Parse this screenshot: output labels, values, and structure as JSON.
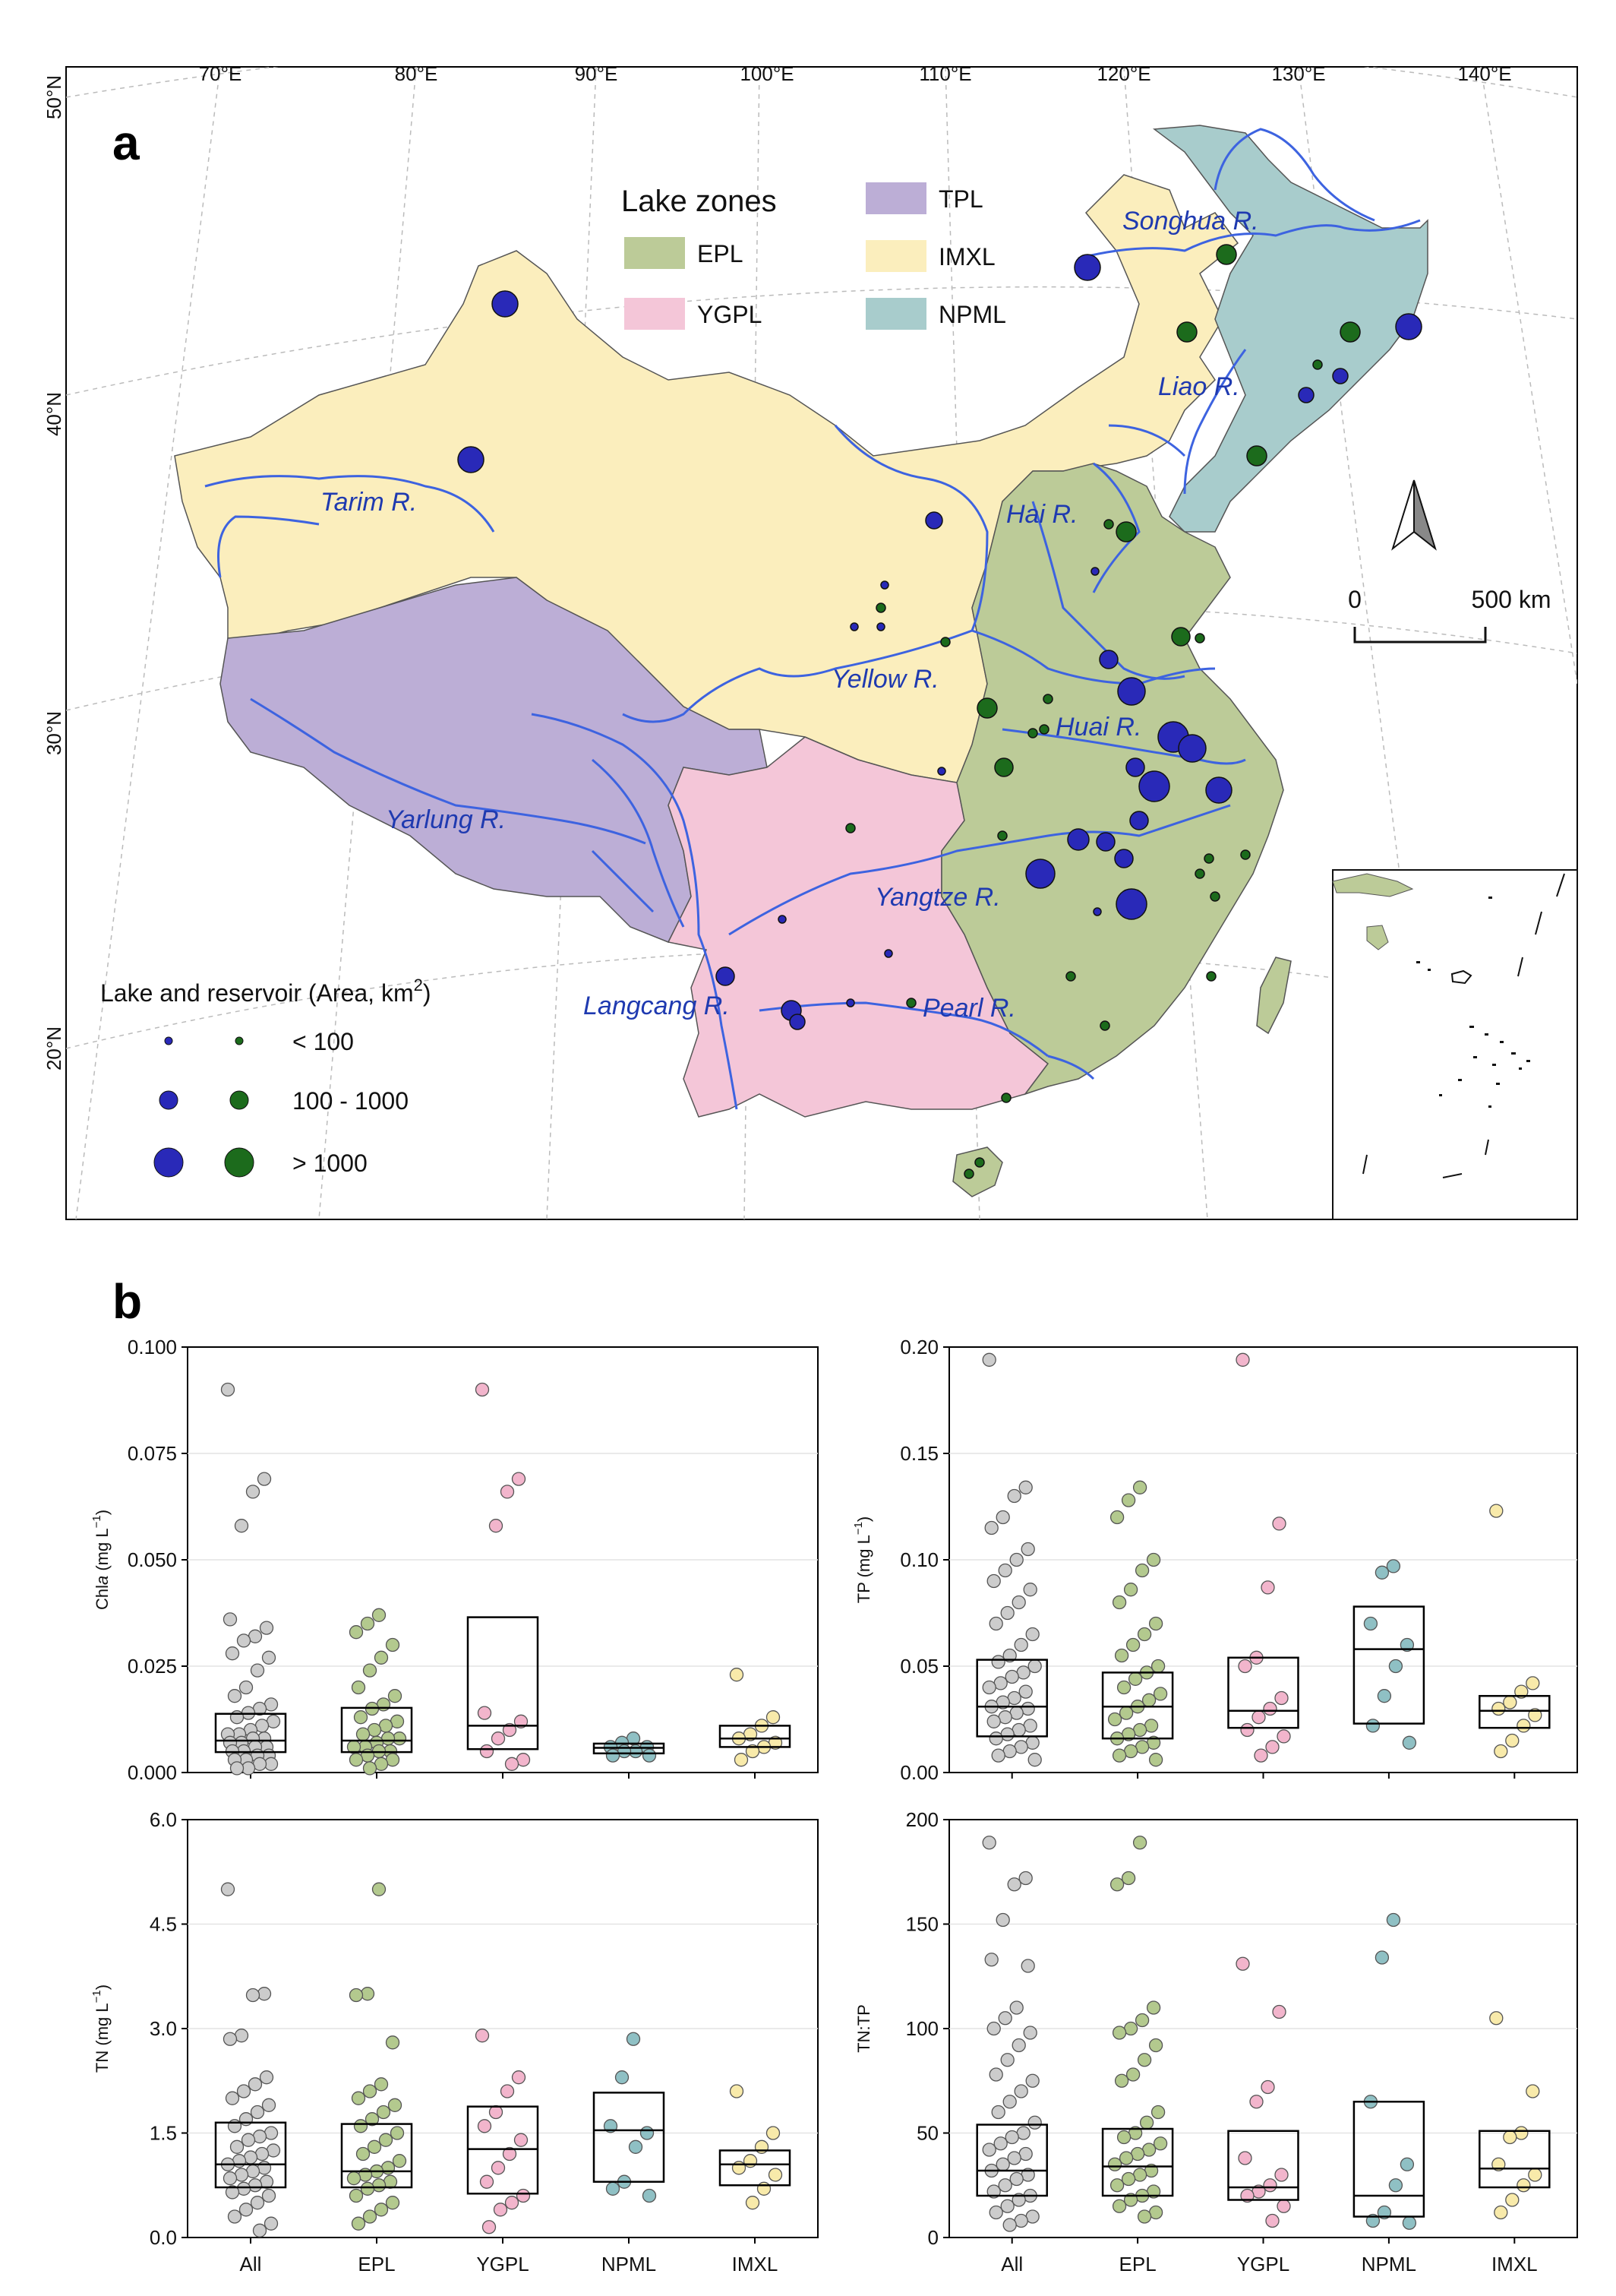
{
  "panel_a": {
    "letter": "a",
    "lon_labels": [
      "70°E",
      "80°E",
      "90°E",
      "100°E",
      "110°E",
      "120°E",
      "130°E",
      "140°E"
    ],
    "lat_labels": [
      "50°N",
      "40°N",
      "30°N",
      "20°N"
    ],
    "legend_zones": {
      "title": "Lake zones",
      "items": [
        {
          "label": "EPL",
          "color": "#bccb98"
        },
        {
          "label": "TPL",
          "color": "#bcaed6"
        },
        {
          "label": "YGPL",
          "color": "#f4c6d8"
        },
        {
          "label": "IMXL",
          "color": "#fbeebd"
        },
        {
          "label": "NPML",
          "color": "#a8cccc"
        }
      ]
    },
    "legend_size": {
      "title": "Lake and reservoir (Area, km",
      "title_sup": "2",
      "title_end": ")",
      "classes": [
        "< 100",
        "100 - 1000",
        "> 1000"
      ]
    },
    "scale_bar": {
      "start": "0",
      "end": "500 km"
    },
    "rivers": [
      "Songhua R.",
      "Liao R.",
      "Hai R.",
      "Tarim R.",
      "Yellow R.",
      "Huai R.",
      "Yarlung R.",
      "Yangtze R.",
      "Langcang R.",
      "Pearl R."
    ],
    "colors": {
      "lake_blue": "#2929b8",
      "lake_green": "#1c6b1c",
      "river": "#3d63e0"
    }
  },
  "panel_b": {
    "letter": "b",
    "categories": [
      "All",
      "EPL",
      "YGPL",
      "NPML",
      "IMXL"
    ],
    "category_colors": [
      "#cccccc",
      "#b3c98e",
      "#f2b5cc",
      "#8fc0c4",
      "#f8eaaa"
    ],
    "chart_data": [
      {
        "type": "box",
        "ylabel_main": "Chla",
        "ylabel_unit": " (mg L",
        "ylabel_sup": "−1",
        "ylabel_end": ")",
        "ylim": [
          0,
          0.1
        ],
        "ticks": [
          "0.000",
          "0.025",
          "0.050",
          "0.075",
          "0.100"
        ],
        "boxes": [
          [
            0.0048,
            0.0075,
            0.0138
          ],
          [
            0.0048,
            0.0075,
            0.0152
          ],
          [
            0.0055,
            0.011,
            0.0365
          ],
          [
            0.0045,
            0.0058,
            0.0068
          ],
          [
            0.006,
            0.008,
            0.011
          ]
        ],
        "points": [
          [
            0.09,
            0.069,
            0.066,
            0.058,
            0.036,
            0.034,
            0.032,
            0.031,
            0.028,
            0.027,
            0.024,
            0.02,
            0.018,
            0.016,
            0.015,
            0.014,
            0.013,
            0.012,
            0.011,
            0.01,
            0.009,
            0.009,
            0.008,
            0.008,
            0.007,
            0.007,
            0.006,
            0.006,
            0.005,
            0.005,
            0.004,
            0.004,
            0.003,
            0.003,
            0.002,
            0.002,
            0.001,
            0.001
          ],
          [
            0.037,
            0.035,
            0.033,
            0.03,
            0.027,
            0.024,
            0.02,
            0.018,
            0.016,
            0.015,
            0.013,
            0.012,
            0.011,
            0.01,
            0.009,
            0.008,
            0.008,
            0.007,
            0.006,
            0.006,
            0.005,
            0.005,
            0.004,
            0.003,
            0.003,
            0.002,
            0.001
          ],
          [
            0.09,
            0.069,
            0.066,
            0.058,
            0.014,
            0.012,
            0.01,
            0.008,
            0.005,
            0.003,
            0.002
          ],
          [
            0.008,
            0.007,
            0.006,
            0.006,
            0.005,
            0.005,
            0.004,
            0.004
          ],
          [
            0.023,
            0.013,
            0.011,
            0.009,
            0.008,
            0.007,
            0.006,
            0.005,
            0.003
          ]
        ]
      },
      {
        "type": "box",
        "ylabel_main": "TP",
        "ylabel_unit": " (mg L",
        "ylabel_sup": "−1",
        "ylabel_end": ")",
        "ylim": [
          0,
          0.2
        ],
        "ticks": [
          "0.00",
          "0.05",
          "0.10",
          "0.15",
          "0.20"
        ],
        "boxes": [
          [
            0.017,
            0.031,
            0.053
          ],
          [
            0.016,
            0.031,
            0.047
          ],
          [
            0.021,
            0.029,
            0.054
          ],
          [
            0.023,
            0.058,
            0.078
          ],
          [
            0.021,
            0.029,
            0.036
          ]
        ],
        "points": [
          [
            0.194,
            0.134,
            0.13,
            0.12,
            0.115,
            0.105,
            0.1,
            0.095,
            0.09,
            0.086,
            0.08,
            0.075,
            0.07,
            0.065,
            0.06,
            0.055,
            0.052,
            0.05,
            0.047,
            0.045,
            0.042,
            0.04,
            0.038,
            0.035,
            0.033,
            0.031,
            0.03,
            0.028,
            0.026,
            0.024,
            0.022,
            0.02,
            0.018,
            0.016,
            0.014,
            0.012,
            0.01,
            0.008,
            0.006
          ],
          [
            0.134,
            0.128,
            0.12,
            0.1,
            0.095,
            0.086,
            0.08,
            0.07,
            0.065,
            0.06,
            0.055,
            0.05,
            0.047,
            0.044,
            0.04,
            0.037,
            0.034,
            0.031,
            0.028,
            0.025,
            0.022,
            0.02,
            0.018,
            0.016,
            0.014,
            0.012,
            0.01,
            0.008,
            0.006
          ],
          [
            0.194,
            0.117,
            0.087,
            0.054,
            0.05,
            0.035,
            0.03,
            0.026,
            0.02,
            0.017,
            0.012,
            0.008
          ],
          [
            0.097,
            0.094,
            0.07,
            0.06,
            0.05,
            0.036,
            0.022,
            0.014
          ],
          [
            0.123,
            0.042,
            0.038,
            0.033,
            0.03,
            0.027,
            0.022,
            0.015,
            0.01
          ]
        ]
      },
      {
        "type": "box",
        "ylabel_main": "TN",
        "ylabel_unit": " (mg L",
        "ylabel_sup": "−1",
        "ylabel_end": ")",
        "ylim": [
          0,
          6
        ],
        "ticks": [
          "0.0",
          "1.5",
          "3.0",
          "4.5",
          "6.0"
        ],
        "boxes": [
          [
            0.72,
            1.05,
            1.65
          ],
          [
            0.72,
            0.95,
            1.63
          ],
          [
            0.63,
            1.27,
            1.88
          ],
          [
            0.8,
            1.54,
            2.08
          ],
          [
            0.75,
            1.05,
            1.25
          ]
        ],
        "points": [
          [
            5.0,
            3.5,
            3.48,
            2.9,
            2.85,
            2.3,
            2.2,
            2.1,
            2.0,
            1.9,
            1.8,
            1.7,
            1.6,
            1.5,
            1.45,
            1.4,
            1.3,
            1.25,
            1.2,
            1.15,
            1.1,
            1.05,
            1.0,
            0.95,
            0.9,
            0.85,
            0.8,
            0.75,
            0.7,
            0.65,
            0.6,
            0.5,
            0.4,
            0.3,
            0.2,
            0.1
          ],
          [
            5.0,
            3.5,
            3.48,
            2.8,
            2.2,
            2.1,
            2.0,
            1.9,
            1.8,
            1.7,
            1.6,
            1.5,
            1.4,
            1.3,
            1.2,
            1.1,
            1.0,
            0.95,
            0.9,
            0.85,
            0.8,
            0.75,
            0.7,
            0.6,
            0.5,
            0.4,
            0.3,
            0.2
          ],
          [
            2.9,
            2.3,
            2.1,
            1.8,
            1.6,
            1.4,
            1.2,
            1.0,
            0.8,
            0.6,
            0.5,
            0.4,
            0.15
          ],
          [
            2.85,
            2.3,
            1.6,
            1.5,
            1.3,
            0.8,
            0.7,
            0.6
          ],
          [
            2.1,
            1.5,
            1.3,
            1.1,
            1.0,
            0.9,
            0.7,
            0.5
          ]
        ]
      },
      {
        "type": "box",
        "ylabel_main": "TN:TP",
        "ylabel_unit": "",
        "ylabel_sup": "",
        "ylabel_end": "",
        "ylim": [
          0,
          200
        ],
        "ticks": [
          "0",
          "50",
          "100",
          "150",
          "200"
        ],
        "boxes": [
          [
            20,
            32,
            54
          ],
          [
            20,
            34,
            52
          ],
          [
            18,
            24,
            51
          ],
          [
            10,
            20,
            65
          ],
          [
            24,
            33,
            51
          ]
        ],
        "points": [
          [
            189,
            172,
            169,
            152,
            133,
            130,
            110,
            105,
            100,
            98,
            92,
            85,
            78,
            75,
            70,
            65,
            60,
            55,
            50,
            48,
            45,
            42,
            40,
            38,
            35,
            32,
            30,
            28,
            25,
            22,
            20,
            18,
            15,
            12,
            10,
            8,
            6
          ],
          [
            189,
            172,
            169,
            110,
            104,
            100,
            98,
            92,
            85,
            78,
            75,
            60,
            55,
            50,
            48,
            45,
            42,
            40,
            38,
            35,
            32,
            30,
            28,
            25,
            22,
            20,
            18,
            15,
            12,
            10
          ],
          [
            131,
            108,
            72,
            65,
            38,
            30,
            25,
            22,
            20,
            15,
            8
          ],
          [
            152,
            134,
            65,
            35,
            25,
            12,
            8,
            7
          ],
          [
            105,
            70,
            50,
            48,
            35,
            30,
            25,
            18,
            12
          ]
        ]
      }
    ]
  }
}
